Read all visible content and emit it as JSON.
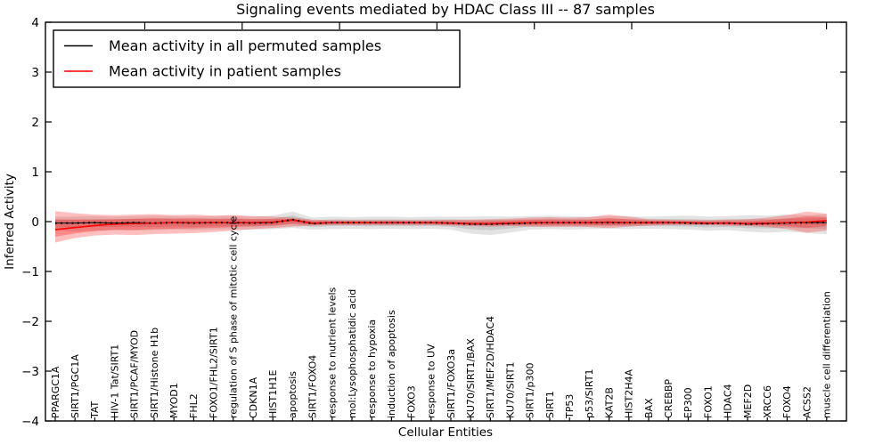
{
  "figure": {
    "title": "Signaling events mediated by HDAC Class III -- 87 samples",
    "xlabel": "Cellular Entities",
    "ylabel": "Inferred Activity"
  },
  "legend": {
    "entries": [
      {
        "label": "Mean activity in all permuted samples",
        "color": "#000000"
      },
      {
        "label": "Mean activity in patient samples",
        "color": "#ff0000"
      }
    ]
  },
  "chart_data": {
    "type": "line",
    "title": "Signaling events mediated by HDAC Class III -- 87 samples",
    "xlabel": "Cellular Entities",
    "ylabel": "Inferred Activity",
    "ylim": [
      -4,
      4
    ],
    "yticks": [
      "−4",
      "−3",
      "−2",
      "−1",
      "0",
      "1",
      "2",
      "3",
      "4"
    ],
    "ytick_values": [
      -4,
      -3,
      -2,
      -1,
      0,
      1,
      2,
      3,
      4
    ],
    "grid": false,
    "legend_position": "upper left",
    "categories": [
      "PPARGC1A",
      "SIRT1/PGC1A",
      "TAT",
      "HIV-1 Tat/SIRT1",
      "SIRT1/PCAF/MYOD",
      "SIRT1/Histone H1b",
      "MYOD1",
      "FHL2",
      "FOXO1/FHL2/SIRT1",
      "regulation of S phase of mitotic cell cycle",
      "CDKN1A",
      "HIST1H1E",
      "apoptosis",
      "SIRT1/FOXO4",
      "response to nutrient levels",
      "mol:Lysophosphatidic acid",
      "response to hypoxia",
      "induction of apoptosis",
      "FOXO3",
      "response to UV",
      "SIRT1/FOXO3a",
      "KU70/SIRT1/BAX",
      "SIRT1/MEF2D/HDAC4",
      "KU70/SIRT1",
      "SIRT1/p300",
      "SIRT1",
      "TP53",
      "p53/SIRT1",
      "KAT2B",
      "HIST2H4A",
      "BAX",
      "CREBBP",
      "EP300",
      "FOXO1",
      "HDAC4",
      "MEF2D",
      "XRCC6",
      "FOXO4",
      "ACSS2",
      "muscle cell differentiation"
    ],
    "series": [
      {
        "name": "Mean activity in all permuted samples",
        "color": "#000000",
        "values": [
          -0.03,
          -0.03,
          -0.02,
          -0.03,
          -0.02,
          -0.03,
          -0.02,
          -0.03,
          -0.02,
          -0.02,
          -0.03,
          -0.02,
          0.04,
          -0.04,
          -0.02,
          -0.02,
          -0.02,
          -0.02,
          -0.02,
          -0.02,
          -0.03,
          -0.05,
          -0.05,
          -0.04,
          -0.03,
          -0.02,
          -0.02,
          -0.02,
          -0.02,
          -0.02,
          -0.02,
          -0.02,
          -0.03,
          -0.04,
          -0.03,
          -0.05,
          -0.04,
          -0.03,
          -0.02,
          -0.02
        ]
      },
      {
        "name": "Mean activity in patient samples",
        "color": "#ff0000",
        "values": [
          -0.16,
          -0.12,
          -0.08,
          -0.05,
          -0.04,
          -0.03,
          -0.02,
          -0.02,
          -0.02,
          -0.02,
          -0.02,
          -0.01,
          0.03,
          -0.03,
          -0.02,
          -0.02,
          -0.02,
          -0.02,
          -0.02,
          -0.02,
          -0.03,
          -0.04,
          -0.04,
          -0.03,
          -0.02,
          -0.02,
          -0.02,
          -0.02,
          -0.01,
          -0.02,
          -0.02,
          -0.02,
          -0.02,
          -0.03,
          -0.03,
          -0.04,
          -0.03,
          -0.02,
          -0.01,
          0.02
        ]
      }
    ],
    "bands": [
      {
        "name": "permuted-samples-std-band",
        "series": 0,
        "color": "#000000",
        "upper": [
          0.1,
          0.1,
          0.11,
          0.1,
          0.11,
          0.12,
          0.11,
          0.1,
          0.11,
          0.12,
          0.1,
          0.12,
          0.2,
          0.08,
          0.1,
          0.09,
          0.1,
          0.1,
          0.09,
          0.1,
          0.1,
          0.1,
          0.11,
          0.1,
          0.11,
          0.12,
          0.11,
          0.1,
          0.11,
          0.1,
          0.1,
          0.11,
          0.12,
          0.1,
          0.11,
          0.13,
          0.12,
          0.14,
          0.13,
          0.15
        ],
        "lower": [
          -0.18,
          -0.2,
          -0.18,
          -0.17,
          -0.18,
          -0.17,
          -0.16,
          -0.17,
          -0.16,
          -0.15,
          -0.16,
          -0.15,
          -0.13,
          -0.16,
          -0.15,
          -0.14,
          -0.15,
          -0.14,
          -0.15,
          -0.14,
          -0.16,
          -0.24,
          -0.27,
          -0.22,
          -0.16,
          -0.15,
          -0.16,
          -0.15,
          -0.14,
          -0.15,
          -0.14,
          -0.15,
          -0.16,
          -0.18,
          -0.17,
          -0.2,
          -0.22,
          -0.2,
          -0.23,
          -0.25
        ]
      },
      {
        "name": "patient-samples-std-band",
        "series": 1,
        "color": "#ff0000",
        "upper": [
          0.21,
          0.17,
          0.14,
          0.13,
          0.14,
          0.15,
          0.13,
          0.14,
          0.12,
          0.13,
          0.11,
          0.1,
          0.08,
          0.04,
          0.03,
          0.03,
          0.03,
          0.03,
          0.03,
          0.03,
          0.04,
          0.04,
          0.05,
          0.06,
          0.08,
          0.09,
          0.08,
          0.09,
          0.14,
          0.1,
          0.05,
          0.04,
          0.03,
          0.03,
          0.04,
          0.05,
          0.08,
          0.13,
          0.2,
          0.16
        ],
        "lower": [
          -0.42,
          -0.33,
          -0.28,
          -0.26,
          -0.27,
          -0.25,
          -0.24,
          -0.23,
          -0.21,
          -0.18,
          -0.15,
          -0.13,
          -0.1,
          -0.08,
          -0.07,
          -0.07,
          -0.07,
          -0.07,
          -0.07,
          -0.07,
          -0.08,
          -0.09,
          -0.1,
          -0.09,
          -0.1,
          -0.11,
          -0.1,
          -0.11,
          -0.13,
          -0.1,
          -0.08,
          -0.07,
          -0.07,
          -0.07,
          -0.08,
          -0.09,
          -0.11,
          -0.15,
          -0.22,
          -0.18
        ]
      }
    ]
  }
}
